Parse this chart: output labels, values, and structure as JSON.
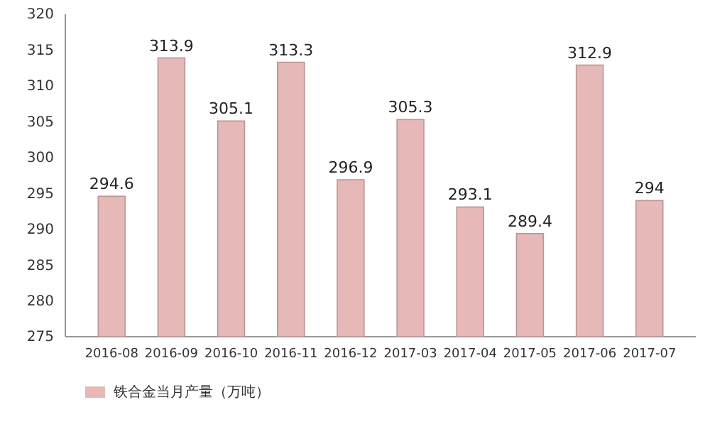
{
  "chart_data": {
    "type": "bar",
    "categories": [
      "2016-08",
      "2016-09",
      "2016-10",
      "2016-11",
      "2016-12",
      "2017-03",
      "2017-04",
      "2017-05",
      "2017-06",
      "2017-07"
    ],
    "series": [
      {
        "name": "铁合金当月产量（万吨）",
        "color": "#e6b8b7",
        "values": [
          294.6,
          313.9,
          305.1,
          313.3,
          296.9,
          305.3,
          293.1,
          289.4,
          312.9,
          294
        ]
      }
    ],
    "ylim": [
      275,
      320
    ],
    "yticks": [
      275,
      280,
      285,
      290,
      295,
      300,
      305,
      310,
      315,
      320
    ],
    "data_labels": true,
    "legend": "bottom",
    "grid": false
  }
}
